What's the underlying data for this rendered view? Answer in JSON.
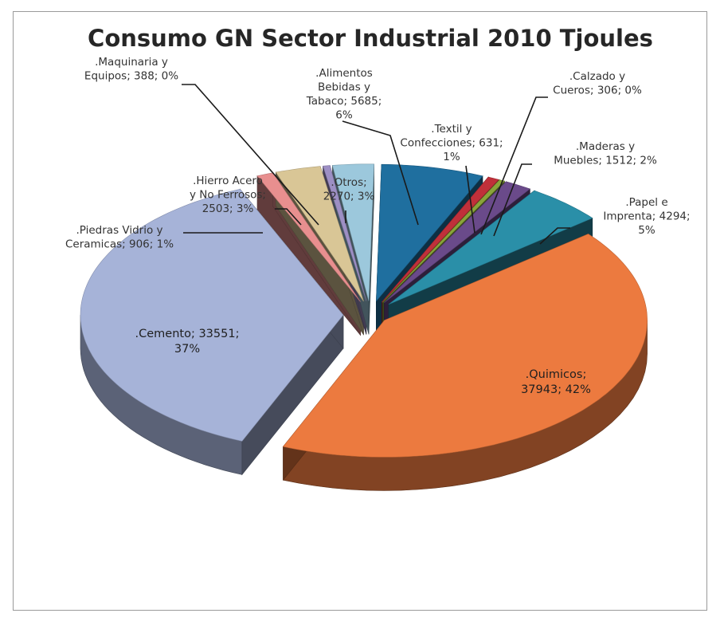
{
  "chart_data": {
    "type": "pie",
    "title": "Consumo GN Sector Industrial 2010 Tjoules",
    "three_d": true,
    "exploded": true,
    "legend": "none",
    "slices": [
      {
        "name": ".Alimentos Bebidas y Tabaco",
        "value": 5685,
        "percent": "6%",
        "color": "#1f6f9f",
        "label": [
          ".Alimentos",
          "Bebidas y",
          "Tabaco; 5685;",
          "6%"
        ]
      },
      {
        "name": ".Textil y Confecciones",
        "value": 631,
        "percent": "1%",
        "color": "#c0303a",
        "label": [
          ".Textil y",
          "Confecciones; 631;",
          "1%"
        ]
      },
      {
        "name": ".Calzado y Cueros",
        "value": 306,
        "percent": "0%",
        "color": "#8aa43a",
        "label": [
          ".Calzado y",
          "Cueros; 306; 0%"
        ]
      },
      {
        "name": ".Maderas y Muebles",
        "value": 1512,
        "percent": "2%",
        "color": "#6a4a8a",
        "label": [
          ".Maderas y",
          "Muebles; 1512; 2%"
        ]
      },
      {
        "name": ".Papel e Imprenta",
        "value": 4294,
        "percent": "5%",
        "color": "#2a8fa8",
        "label": [
          ".Papel e",
          "Imprenta; 4294;",
          "5%"
        ]
      },
      {
        "name": ".Quimicos",
        "value": 37943,
        "percent": "42%",
        "color": "#ec7a3f",
        "label": [
          ".Quimicos;",
          "37943; 42%"
        ]
      },
      {
        "name": ".Cemento",
        "value": 33551,
        "percent": "37%",
        "color": "#a6b3d8",
        "label": [
          ".Cemento; 33551;",
          "37%"
        ]
      },
      {
        "name": ".Piedras Vidrio y Ceramicas",
        "value": 906,
        "percent": "1%",
        "color": "#e88f8f",
        "label": [
          ".Piedras Vidrio y",
          "Ceramicas; 906; 1%"
        ]
      },
      {
        "name": ".Hierro Acero y No Ferrosos",
        "value": 2503,
        "percent": "3%",
        "color": "#d9c696",
        "label": [
          ".Hierro Acero",
          "y No Ferrosos;",
          "2503; 3%"
        ]
      },
      {
        "name": ".Maquinaria y Equipos",
        "value": 388,
        "percent": "0%",
        "color": "#9d8fc4",
        "label": [
          ".Maquinaria y",
          "Equipos; 388; 0%"
        ]
      },
      {
        "name": ".Otros",
        "value": 2270,
        "percent": "3%",
        "color": "#9cc8dc",
        "label": [
          ".Otros;",
          "2270; 3%"
        ]
      }
    ]
  }
}
